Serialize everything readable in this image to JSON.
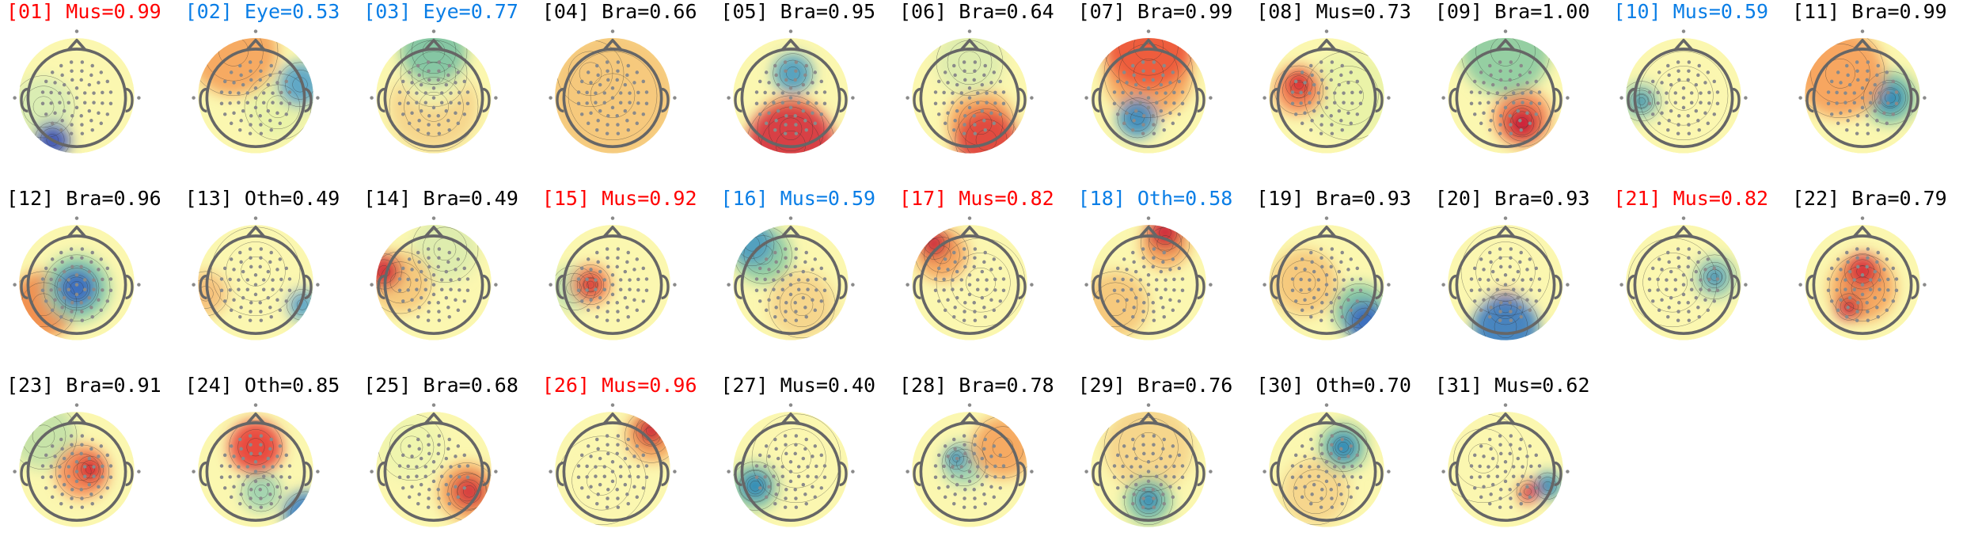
{
  "colors": {
    "muscle": "#ff0000",
    "eye": "#0a7ee6",
    "other": "#000000"
  },
  "components": [
    {
      "id": "[01]",
      "cls": "Mus",
      "score": "0.99",
      "color": "#ff0000"
    },
    {
      "id": "[02]",
      "cls": "Eye",
      "score": "0.53",
      "color": "#0a7ee6"
    },
    {
      "id": "[03]",
      "cls": "Eye",
      "score": "0.77",
      "color": "#0a7ee6"
    },
    {
      "id": "[04]",
      "cls": "Bra",
      "score": "0.66",
      "color": "#000000"
    },
    {
      "id": "[05]",
      "cls": "Bra",
      "score": "0.95",
      "color": "#000000"
    },
    {
      "id": "[06]",
      "cls": "Bra",
      "score": "0.64",
      "color": "#000000"
    },
    {
      "id": "[07]",
      "cls": "Bra",
      "score": "0.99",
      "color": "#000000"
    },
    {
      "id": "[08]",
      "cls": "Mus",
      "score": "0.73",
      "color": "#000000"
    },
    {
      "id": "[09]",
      "cls": "Bra",
      "score": "1.00",
      "color": "#000000"
    },
    {
      "id": "[10]",
      "cls": "Mus",
      "score": "0.59",
      "color": "#0a7ee6"
    },
    {
      "id": "[11]",
      "cls": "Bra",
      "score": "0.99",
      "color": "#000000"
    },
    {
      "id": "[12]",
      "cls": "Bra",
      "score": "0.96",
      "color": "#000000"
    },
    {
      "id": "[13]",
      "cls": "Oth",
      "score": "0.49",
      "color": "#000000"
    },
    {
      "id": "[14]",
      "cls": "Bra",
      "score": "0.49",
      "color": "#000000"
    },
    {
      "id": "[15]",
      "cls": "Mus",
      "score": "0.92",
      "color": "#ff0000"
    },
    {
      "id": "[16]",
      "cls": "Mus",
      "score": "0.59",
      "color": "#0a7ee6"
    },
    {
      "id": "[17]",
      "cls": "Mus",
      "score": "0.82",
      "color": "#ff0000"
    },
    {
      "id": "[18]",
      "cls": "Oth",
      "score": "0.58",
      "color": "#0a7ee6"
    },
    {
      "id": "[19]",
      "cls": "Bra",
      "score": "0.93",
      "color": "#000000"
    },
    {
      "id": "[20]",
      "cls": "Bra",
      "score": "0.93",
      "color": "#000000"
    },
    {
      "id": "[21]",
      "cls": "Mus",
      "score": "0.82",
      "color": "#ff0000"
    },
    {
      "id": "[22]",
      "cls": "Bra",
      "score": "0.79",
      "color": "#000000"
    },
    {
      "id": "[23]",
      "cls": "Bra",
      "score": "0.91",
      "color": "#000000"
    },
    {
      "id": "[24]",
      "cls": "Oth",
      "score": "0.85",
      "color": "#000000"
    },
    {
      "id": "[25]",
      "cls": "Bra",
      "score": "0.68",
      "color": "#000000"
    },
    {
      "id": "[26]",
      "cls": "Mus",
      "score": "0.96",
      "color": "#ff0000"
    },
    {
      "id": "[27]",
      "cls": "Mus",
      "score": "0.40",
      "color": "#000000"
    },
    {
      "id": "[28]",
      "cls": "Bra",
      "score": "0.78",
      "color": "#000000"
    },
    {
      "id": "[29]",
      "cls": "Bra",
      "score": "0.76",
      "color": "#000000"
    },
    {
      "id": "[30]",
      "cls": "Oth",
      "score": "0.70",
      "color": "#000000"
    },
    {
      "id": "[31]",
      "cls": "Mus",
      "score": "0.62",
      "color": "#000000"
    }
  ]
}
